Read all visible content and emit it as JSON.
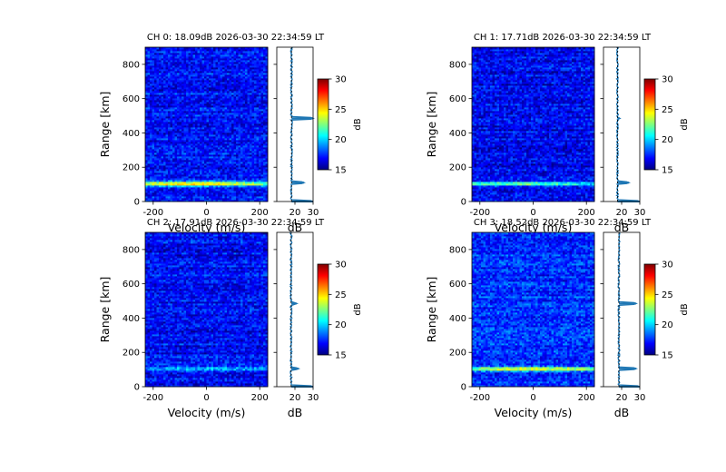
{
  "colors": {
    "background": "#ffffff",
    "profile_line": "#1f77b4",
    "colormap": [
      "#00007f",
      "#0000ff",
      "#007fff",
      "#00ffff",
      "#7fff7f",
      "#ffff00",
      "#ff7f00",
      "#ff0000",
      "#7f0000"
    ]
  },
  "chart_data": [
    {
      "type": "heatmap",
      "title": "CH 0: 18.09dB 2026-03-30 22:34:59 LT",
      "xlabel": "Velocity (m/s)",
      "ylabel": "Range [km]",
      "xlim": [
        -230,
        230
      ],
      "ylim": [
        0,
        900
      ],
      "xticks": [
        -200,
        0,
        200
      ],
      "yticks": [
        0,
        200,
        400,
        600,
        800
      ],
      "colorbar": {
        "label": "dB",
        "clim": [
          15,
          30
        ],
        "ticks": [
          15,
          20,
          25,
          30
        ]
      },
      "noise_level_db": 18.09,
      "echo_layers": [
        {
          "range_km": 105,
          "peak_db": 26,
          "velocity_center": -50
        }
      ],
      "profile": {
        "xlabel": "dB",
        "xlim": [
          10,
          30
        ],
        "xticks": [
          20,
          30
        ],
        "noise_db": 18.1,
        "spikes": [
          {
            "range_km": 0,
            "db": 30
          },
          {
            "range_km": 110,
            "db": 25
          },
          {
            "range_km": 485,
            "db": 30
          }
        ]
      }
    },
    {
      "type": "heatmap",
      "title": "CH 1: 17.71dB 2026-03-30 22:34:59 LT",
      "xlabel": "Velocity (m/s)",
      "ylabel": "Range [km]",
      "xlim": [
        -230,
        230
      ],
      "ylim": [
        0,
        900
      ],
      "xticks": [
        -200,
        0,
        200
      ],
      "yticks": [
        0,
        200,
        400,
        600,
        800
      ],
      "colorbar": {
        "label": "dB",
        "clim": [
          15,
          30
        ],
        "ticks": [
          15,
          20,
          25,
          30
        ]
      },
      "noise_level_db": 17.71,
      "echo_layers": [
        {
          "range_km": 105,
          "peak_db": 23,
          "velocity_center": -80
        }
      ],
      "profile": {
        "xlabel": "dB",
        "xlim": [
          10,
          30
        ],
        "xticks": [
          20,
          30
        ],
        "noise_db": 17.7,
        "spikes": [
          {
            "range_km": 0,
            "db": 30
          },
          {
            "range_km": 110,
            "db": 24
          },
          {
            "range_km": 485,
            "db": 19
          }
        ]
      }
    },
    {
      "type": "heatmap",
      "title": "CH 2: 17.91dB 2026-03-30 22:34:59 LT",
      "xlabel": "Velocity (m/s)",
      "ylabel": "Range [km]",
      "xlim": [
        -230,
        230
      ],
      "ylim": [
        0,
        900
      ],
      "xticks": [
        -200,
        0,
        200
      ],
      "yticks": [
        0,
        200,
        400,
        600,
        800
      ],
      "colorbar": {
        "label": "dB",
        "clim": [
          15,
          30
        ],
        "ticks": [
          15,
          20,
          25,
          30
        ]
      },
      "noise_level_db": 17.91,
      "echo_layers": [
        {
          "range_km": 105,
          "peak_db": 21,
          "velocity_center": 0
        }
      ],
      "profile": {
        "xlabel": "dB",
        "xlim": [
          10,
          30
        ],
        "xticks": [
          20,
          30
        ],
        "noise_db": 17.9,
        "spikes": [
          {
            "range_km": 0,
            "db": 30
          },
          {
            "range_km": 105,
            "db": 22
          },
          {
            "range_km": 485,
            "db": 21
          }
        ]
      }
    },
    {
      "type": "heatmap",
      "title": "CH 3: 18.52dB 2026-03-30 22:34:59 LT",
      "xlabel": "Velocity (m/s)",
      "ylabel": "Range [km]",
      "xlim": [
        -230,
        230
      ],
      "ylim": [
        0,
        900
      ],
      "xticks": [
        -200,
        0,
        200
      ],
      "yticks": [
        0,
        200,
        400,
        600,
        800
      ],
      "colorbar": {
        "label": "dB",
        "clim": [
          15,
          30
        ],
        "ticks": [
          15,
          20,
          25,
          30
        ]
      },
      "noise_level_db": 18.52,
      "echo_layers": [
        {
          "range_km": 105,
          "peak_db": 26,
          "velocity_center": 0
        }
      ],
      "profile": {
        "xlabel": "dB",
        "xlim": [
          10,
          30
        ],
        "xticks": [
          20,
          30
        ],
        "noise_db": 18.5,
        "spikes": [
          {
            "range_km": 0,
            "db": 30
          },
          {
            "range_km": 105,
            "db": 28
          },
          {
            "range_km": 485,
            "db": 28
          }
        ]
      }
    }
  ]
}
